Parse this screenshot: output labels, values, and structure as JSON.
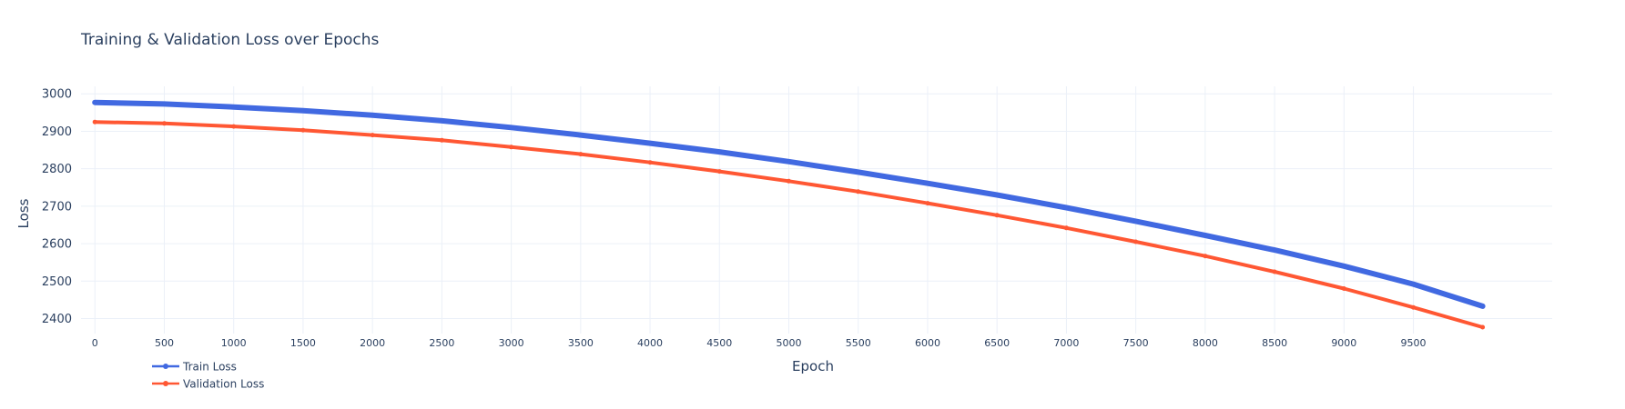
{
  "chart_data": {
    "type": "line",
    "title": "Training & Validation Loss over Epochs",
    "xlabel": "Epoch",
    "ylabel": "Loss",
    "xlim": [
      -100,
      10500
    ],
    "ylim": [
      2360,
      3020
    ],
    "xticks": [
      0,
      500,
      1000,
      1500,
      2000,
      2500,
      3000,
      3500,
      4000,
      4500,
      5000,
      5500,
      6000,
      6500,
      7000,
      7500,
      8000,
      8500,
      9000,
      9500
    ],
    "yticks": [
      2400,
      2500,
      2600,
      2700,
      2800,
      2900,
      3000
    ],
    "grid": true,
    "legend_position": "bottom-left",
    "x": [
      0,
      500,
      1000,
      1500,
      2000,
      2500,
      3000,
      3500,
      4000,
      4500,
      5000,
      5500,
      6000,
      6500,
      7000,
      7500,
      8000,
      8500,
      9000,
      9500,
      9999
    ],
    "series": [
      {
        "name": "Train Loss",
        "color": "#4169e1",
        "values": [
          2977,
          2973,
          2965,
          2955,
          2943,
          2928,
          2910,
          2890,
          2868,
          2845,
          2819,
          2791,
          2761,
          2730,
          2696,
          2660,
          2622,
          2583,
          2540,
          2492,
          2433
        ]
      },
      {
        "name": "Validation Loss",
        "color": "#ff5733",
        "values": [
          2925,
          2921,
          2913,
          2903,
          2890,
          2876,
          2858,
          2839,
          2817,
          2793,
          2767,
          2739,
          2708,
          2676,
          2642,
          2605,
          2567,
          2525,
          2480,
          2430,
          2377
        ]
      }
    ]
  }
}
